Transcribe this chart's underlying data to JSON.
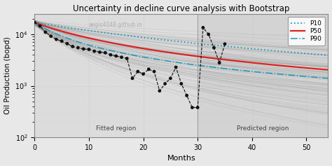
{
  "title": "Uncertainty in decline curve analysis with Bootstrap",
  "xlabel": "Months",
  "ylabel": "Oil Production (bopd)",
  "watermark": "aegis4048.github.io",
  "xlim": [
    0,
    54
  ],
  "ylim_log": [
    100,
    25000
  ],
  "fitted_end": 30,
  "predicted_start": 30,
  "bg_color": "#e8e8e8",
  "plot_bg": "#dcdcdc",
  "bootstrap_color": "#888888",
  "bootstrap_alpha": 0.18,
  "p10_color": "#1a9abe",
  "p50_color": "#dd2222",
  "p90_color": "#1a9abe",
  "scatter_color": "#111111",
  "legend_labels": [
    "P10",
    "P50",
    "P90"
  ],
  "fitted_label": "Fitted region",
  "predicted_label": "Predicted region",
  "qi": 17000,
  "di_p50": 0.09,
  "di_p10": 0.04,
  "di_p90": 0.16,
  "n_p50": 0.7,
  "n_p10": 0.5,
  "n_p90": 0.85,
  "n_bootstrap": 100,
  "observed_months": [
    0,
    1,
    2,
    3,
    4,
    5,
    6,
    7,
    8,
    9,
    10,
    11,
    12,
    13,
    14,
    15,
    16,
    17,
    18,
    19,
    20,
    21,
    22,
    23,
    24,
    25,
    26,
    27,
    28,
    29,
    30,
    31,
    32,
    33,
    34,
    35
  ],
  "observed_values": [
    17000,
    14500,
    11000,
    9200,
    8000,
    7400,
    6600,
    5800,
    5500,
    5200,
    5100,
    4700,
    4500,
    4400,
    4000,
    3800,
    3600,
    3400,
    1400,
    1900,
    1700,
    2100,
    1900,
    800,
    1100,
    1400,
    2300,
    1100,
    650,
    380,
    380,
    13500,
    10000,
    5500,
    2800,
    6500
  ]
}
